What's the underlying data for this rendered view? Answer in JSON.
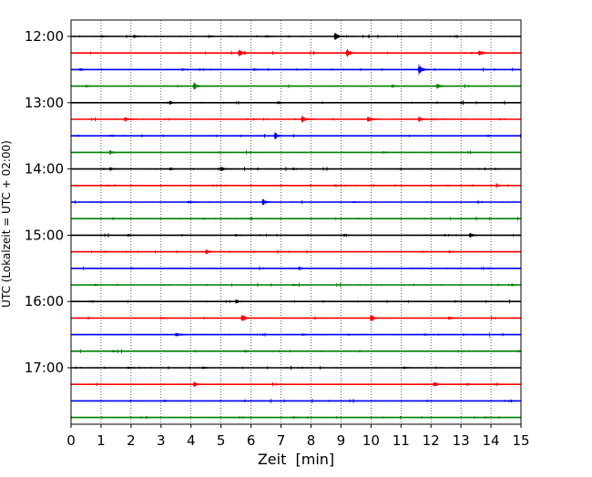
{
  "chart_data": {
    "type": "line",
    "title": "",
    "xlabel": "Zeit  [min]",
    "ylabel": "UTC (Lokalzeit = UTC + 02:00)",
    "xlim": [
      0,
      15
    ],
    "x_ticks": [
      "0",
      "1",
      "2",
      "3",
      "4",
      "5",
      "6",
      "7",
      "8",
      "9",
      "10",
      "11",
      "12",
      "13",
      "14",
      "15"
    ],
    "y_ticks": [
      "12:00",
      "13:00",
      "14:00",
      "15:00",
      "16:00",
      "17:00"
    ],
    "grid": "vertical dotted lines at each minute",
    "trace_interval_min": 15,
    "color_cycle": [
      "#000000",
      "#ff0000",
      "#0000ff",
      "#008000"
    ],
    "traces": [
      {
        "start": "12:00",
        "events": [
          [
            1.0,
            0.5
          ],
          [
            2.1,
            0.6
          ],
          [
            4.6,
            0.4
          ],
          [
            6.5,
            0.5
          ],
          [
            8.8,
            1.6
          ]
        ]
      },
      {
        "start": "12:15",
        "events": [
          [
            5.6,
            1.4
          ],
          [
            9.2,
            1.8
          ],
          [
            13.6,
            1.1
          ]
        ]
      },
      {
        "start": "12:30",
        "events": [
          [
            0.3,
            0.5
          ],
          [
            3.7,
            0.4
          ],
          [
            6.1,
            0.4
          ],
          [
            11.6,
            2.0
          ]
        ]
      },
      {
        "start": "12:45",
        "events": [
          [
            0.5,
            0.4
          ],
          [
            4.1,
            1.6
          ],
          [
            10.7,
            0.6
          ],
          [
            12.2,
            1.2
          ]
        ]
      },
      {
        "start": "13:00",
        "events": [
          [
            3.3,
            0.7
          ],
          [
            6.9,
            0.5
          ],
          [
            13.0,
            0.4
          ]
        ]
      },
      {
        "start": "13:15",
        "events": [
          [
            1.8,
            0.9
          ],
          [
            7.7,
            1.4
          ],
          [
            9.9,
            1.3
          ],
          [
            11.6,
            1.0
          ]
        ]
      },
      {
        "start": "13:30",
        "events": [
          [
            1.3,
            0.4
          ],
          [
            6.8,
            1.3
          ],
          [
            13.9,
            0.4
          ]
        ]
      },
      {
        "start": "13:45",
        "events": [
          [
            1.3,
            0.8
          ],
          [
            4.9,
            0.4
          ],
          [
            10.4,
            0.4
          ]
        ]
      },
      {
        "start": "14:00",
        "events": [
          [
            1.3,
            0.6
          ],
          [
            3.3,
            0.5
          ],
          [
            5.0,
            0.9
          ],
          [
            7.4,
            0.4
          ]
        ]
      },
      {
        "start": "14:15",
        "events": [
          [
            1.2,
            0.4
          ],
          [
            8.8,
            0.4
          ],
          [
            14.2,
            0.4
          ]
        ]
      },
      {
        "start": "14:30",
        "events": [
          [
            3.9,
            0.4
          ],
          [
            6.4,
            1.4
          ],
          [
            9.4,
            0.3
          ]
        ]
      },
      {
        "start": "14:45",
        "events": [
          [
            1.4,
            0.4
          ],
          [
            4.4,
            0.4
          ],
          [
            9.5,
            0.3
          ]
        ]
      },
      {
        "start": "15:00",
        "events": [
          [
            1.9,
            0.4
          ],
          [
            5.5,
            0.4
          ],
          [
            9.1,
            0.4
          ],
          [
            13.3,
            0.9
          ]
        ]
      },
      {
        "start": "15:15",
        "events": [
          [
            1.1,
            0.4
          ],
          [
            4.5,
            1.0
          ],
          [
            12.6,
            0.4
          ]
        ]
      },
      {
        "start": "15:30",
        "events": [
          [
            2.0,
            0.5
          ],
          [
            7.6,
            0.7
          ],
          [
            13.9,
            0.4
          ]
        ]
      },
      {
        "start": "15:45",
        "events": [
          [
            0.8,
            0.4
          ],
          [
            7.4,
            0.4
          ],
          [
            14.7,
            0.4
          ]
        ]
      },
      {
        "start": "16:00",
        "events": [
          [
            0.7,
            0.4
          ],
          [
            5.5,
            0.7
          ],
          [
            12.8,
            0.3
          ]
        ]
      },
      {
        "start": "16:15",
        "events": [
          [
            3.0,
            0.4
          ],
          [
            5.7,
            1.7
          ],
          [
            10.0,
            1.7
          ],
          [
            12.6,
            0.6
          ]
        ]
      },
      {
        "start": "16:30",
        "events": [
          [
            3.5,
            1.0
          ],
          [
            7.7,
            0.4
          ],
          [
            11.8,
            0.4
          ]
        ]
      },
      {
        "start": "16:45",
        "events": [
          [
            1.4,
            0.4
          ],
          [
            5.8,
            0.4
          ],
          [
            14.9,
            0.4
          ]
        ]
      },
      {
        "start": "17:00",
        "events": [
          [
            1.9,
            0.4
          ],
          [
            4.4,
            0.4
          ],
          [
            11.1,
            0.4
          ]
        ]
      },
      {
        "start": "17:15",
        "events": [
          [
            4.1,
            1.0
          ],
          [
            12.1,
            1.0
          ],
          [
            13.2,
            0.4
          ]
        ]
      },
      {
        "start": "17:30",
        "events": [
          [
            3.1,
            0.4
          ],
          [
            8.6,
            0.3
          ],
          [
            14.6,
            0.3
          ]
        ]
      },
      {
        "start": "17:45",
        "events": [
          [
            2.5,
            0.4
          ],
          [
            7.4,
            0.4
          ],
          [
            13.8,
            0.3
          ]
        ]
      }
    ]
  }
}
